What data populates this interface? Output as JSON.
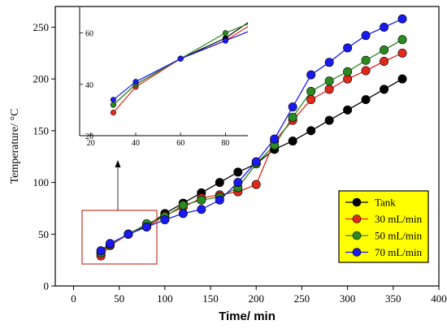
{
  "chart_data": {
    "type": "line",
    "title": "",
    "xlabel": "Time/ min",
    "ylabel": "Temperature/ °C",
    "xlim": [
      -20,
      400
    ],
    "ylim": [
      0,
      270
    ],
    "xticks": [
      "0",
      "50",
      "100",
      "150",
      "200",
      "250",
      "300",
      "350",
      "400"
    ],
    "yticks": [
      "0",
      "50",
      "100",
      "150",
      "200",
      "250"
    ],
    "legend_position": "bottom-right",
    "legend_background": "#ffff00",
    "series": [
      {
        "name": "Tank",
        "color": "#000000",
        "x": [
          30,
          40,
          60,
          80,
          100,
          120,
          140,
          160,
          180,
          200,
          220,
          240,
          260,
          280,
          300,
          320,
          340,
          360
        ],
        "y": [
          32,
          40,
          50,
          58,
          70,
          80,
          90,
          100,
          110,
          118,
          132,
          140,
          150,
          160,
          170,
          180,
          190,
          200
        ]
      },
      {
        "name": "30 mL/min",
        "color": "#e0281c",
        "x": [
          30,
          40,
          60,
          80,
          100,
          120,
          140,
          160,
          180,
          200,
          220,
          240,
          260,
          280,
          300,
          320,
          340,
          360
        ],
        "y": [
          29,
          39,
          50,
          57,
          68,
          76,
          85,
          88,
          91,
          98,
          140,
          160,
          180,
          190,
          200,
          208,
          217,
          225
        ]
      },
      {
        "name": "50 mL/min",
        "color": "#2a8a1f",
        "x": [
          30,
          40,
          60,
          80,
          100,
          120,
          140,
          160,
          180,
          200,
          220,
          240,
          260,
          280,
          300,
          320,
          340,
          360
        ],
        "y": [
          32,
          40,
          50,
          60,
          67,
          78,
          83,
          86,
          95,
          118,
          136,
          163,
          188,
          198,
          207,
          218,
          228,
          238
        ]
      },
      {
        "name": "70 mL/min",
        "color": "#1a1af0",
        "x": [
          30,
          40,
          60,
          80,
          100,
          120,
          140,
          160,
          180,
          200,
          220,
          240,
          260,
          280,
          300,
          320,
          340,
          360
        ],
        "y": [
          34,
          41,
          50,
          57,
          64,
          70,
          74,
          83,
          100,
          120,
          142,
          173,
          204,
          216,
          230,
          242,
          250,
          258
        ]
      }
    ],
    "inset": {
      "xlim": [
        15,
        90
      ],
      "ylim": [
        20,
        70
      ],
      "xticks": [
        "20",
        "40",
        "60",
        "80"
      ],
      "yticks": [
        "20",
        "40",
        "60"
      ]
    }
  }
}
